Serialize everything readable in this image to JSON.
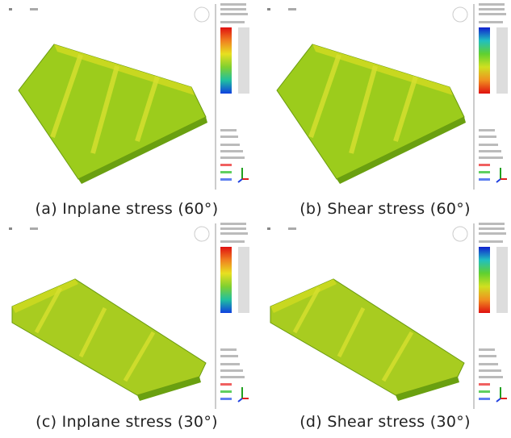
{
  "figures": [
    {
      "caption": "(a) Inplane stress (60°)"
    },
    {
      "caption": "(b) Shear stress (60°)"
    },
    {
      "caption": "(c) Inplane stress (30°)"
    },
    {
      "caption": "(d) Shear stress (30°)"
    }
  ]
}
